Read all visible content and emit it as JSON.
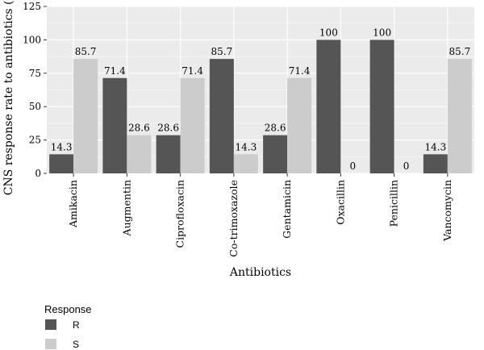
{
  "chart_data": {
    "type": "bar",
    "title": "",
    "xlabel": "Antibiotics",
    "ylabel": "CNS response rate to antibiotics (%)",
    "ylim": [
      0,
      125
    ],
    "yticks": [
      0,
      25,
      50,
      75,
      100,
      125
    ],
    "grid": true,
    "categories": [
      "Amikacin",
      "Augmentin",
      "Ciprofloxacin",
      "Co-trimoxazole",
      "Gentamicin",
      "Oxacillin",
      "Penicillin",
      "Vancomycin"
    ],
    "series": [
      {
        "name": "R",
        "color": "#555555",
        "values": [
          14.3,
          71.4,
          28.6,
          85.7,
          28.6,
          100,
          100,
          14.3
        ],
        "labels": [
          "14.3",
          "71.4",
          "28.6",
          "85.7",
          "28.6",
          "100",
          "100",
          "14.3"
        ]
      },
      {
        "name": "S",
        "color": "#cccccc",
        "values": [
          85.7,
          28.6,
          71.4,
          14.3,
          71.4,
          0,
          0,
          85.7
        ],
        "labels": [
          "85.7",
          "28.6",
          "71.4",
          "14.3",
          "71.4",
          "0",
          "0",
          "85.7"
        ]
      }
    ],
    "legend": {
      "title": "Response",
      "position": "bottom-left"
    },
    "panel_background": "#ebebeb",
    "grid_color": "#ffffff"
  }
}
